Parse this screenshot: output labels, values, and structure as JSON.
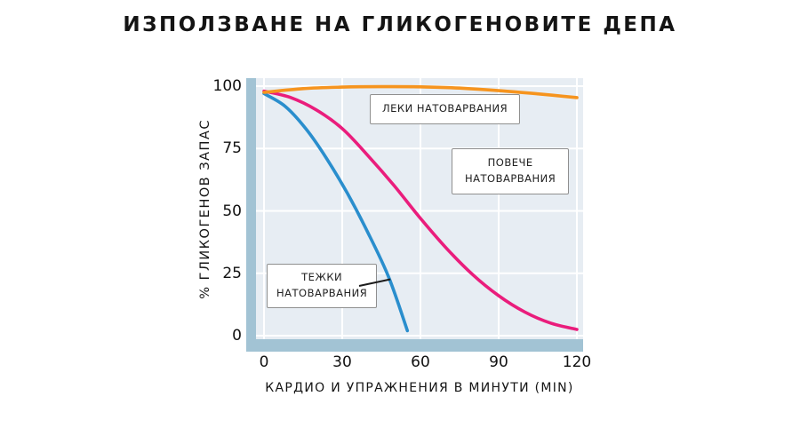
{
  "page_title": "ИЗПОЛЗВАНЕ НА ГЛИКОГЕНОВИТЕ ДЕПА",
  "chart_data": {
    "type": "line",
    "title": "ИЗПОЛЗВАНЕ НА ГЛИКОГЕНОВИТЕ ДЕПА",
    "xlabel": "КАРДИО И УПРАЖНЕНИЯ В МИНУТИ (MIN)",
    "ylabel": "% ГЛИКОГЕНОВ ЗАПАС",
    "xlim": [
      0,
      120
    ],
    "ylim": [
      0,
      100
    ],
    "xticks": [
      0,
      30,
      60,
      90,
      120
    ],
    "yticks": [
      0,
      25,
      50,
      75,
      100
    ],
    "grid": true,
    "legend_position": "annotations-inside",
    "colors": {
      "plot_background": "#e7edf3",
      "axis_band": "#a2c3d4",
      "grid": "#ffffff",
      "light_load": "#f6941e",
      "more_load": "#ea1d7c",
      "heavy_load": "#2a8ecd"
    },
    "series": [
      {
        "name": "ЛЕКИ НАТОВАРВАНИЯ",
        "color": "#f6941e",
        "x": [
          0,
          15,
          30,
          45,
          60,
          75,
          90,
          105,
          120
        ],
        "y": [
          97.5,
          99.0,
          99.6,
          99.8,
          99.7,
          99.2,
          98.2,
          96.9,
          95.4
        ]
      },
      {
        "name": "ПОВЕЧЕ НАТОВАРВАНИЯ",
        "color": "#ea1d7c",
        "x": [
          0,
          10,
          20,
          30,
          40,
          50,
          60,
          70,
          80,
          90,
          100,
          110,
          120
        ],
        "y": [
          98,
          95.5,
          90.5,
          83,
          72,
          60,
          47,
          35,
          24.5,
          16,
          9.5,
          5,
          2.5
        ]
      },
      {
        "name": "ТЕЖКИ НАТОВАРВАНИЯ",
        "color": "#2a8ecd",
        "x": [
          0,
          8,
          16,
          24,
          32,
          40,
          48,
          55
        ],
        "y": [
          97,
          92,
          83,
          71,
          57,
          41,
          23,
          2
        ]
      }
    ],
    "annotations": [
      {
        "lines": [
          "ЛЕКИ НАТОВАРВАНИЯ"
        ]
      },
      {
        "lines": [
          "ПОВЕЧЕ",
          "НАТОВАРВАНИЯ"
        ]
      },
      {
        "lines": [
          "ТЕЖКИ",
          "НАТОВАРВАНИЯ"
        ]
      }
    ]
  }
}
